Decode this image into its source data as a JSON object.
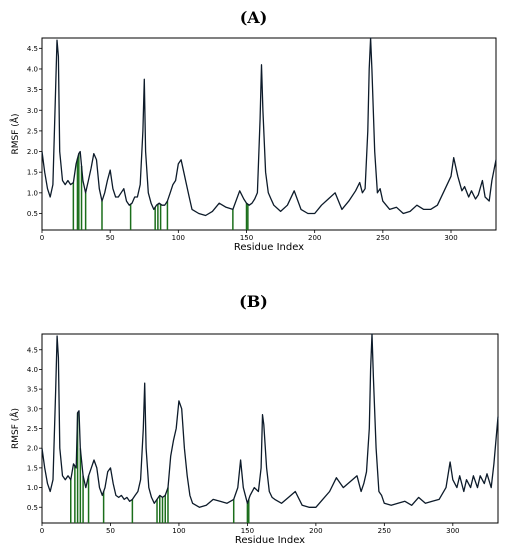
{
  "chart_data": [
    {
      "type": "line",
      "title": "(A)",
      "xlabel": "Residue Index",
      "ylabel": "RMSF (Å)",
      "xlim": [
        0,
        333
      ],
      "ylim": [
        0.1,
        4.75
      ],
      "x_ticks": [
        0,
        50,
        100,
        150,
        200,
        250,
        300
      ],
      "y_ticks": [
        0.5,
        1.0,
        1.5,
        2.0,
        2.5,
        3.0,
        3.5,
        4.0,
        4.5
      ],
      "line_color": "#0d1b2a",
      "marker_color": "#1b6e1b",
      "series": [
        {
          "x": [
            0,
            2,
            4,
            6,
            8,
            10,
            11,
            12,
            13,
            15,
            17,
            19,
            21,
            23,
            25,
            27,
            28,
            30,
            32,
            34,
            36,
            38,
            40,
            42,
            44,
            46,
            48,
            50,
            52,
            54,
            56,
            58,
            60,
            62,
            64,
            66,
            68,
            70,
            72,
            74,
            75,
            76,
            78,
            80,
            82,
            84,
            86,
            88,
            90,
            92,
            94,
            96,
            98,
            100,
            102,
            104,
            106,
            108,
            110,
            115,
            120,
            125,
            130,
            135,
            140,
            145,
            148,
            150,
            152,
            154,
            156,
            158,
            160,
            161,
            162,
            164,
            166,
            168,
            170,
            175,
            180,
            185,
            190,
            195,
            200,
            205,
            210,
            215,
            220,
            225,
            230,
            233,
            235,
            237,
            239,
            240,
            241,
            242,
            244,
            246,
            248,
            250,
            255,
            260,
            265,
            270,
            275,
            280,
            285,
            290,
            295,
            300,
            302,
            305,
            308,
            310,
            313,
            315,
            318,
            320,
            323,
            325,
            328,
            330,
            333
          ],
          "y": [
            2.0,
            1.5,
            1.1,
            0.9,
            1.2,
            3.5,
            4.7,
            4.3,
            2.0,
            1.3,
            1.2,
            1.3,
            1.2,
            1.25,
            1.7,
            1.95,
            2.0,
            1.3,
            1.0,
            1.3,
            1.6,
            1.95,
            1.8,
            1.1,
            0.8,
            1.0,
            1.3,
            1.55,
            1.1,
            0.9,
            0.9,
            1.0,
            1.1,
            0.8,
            0.7,
            0.75,
            0.9,
            0.9,
            1.2,
            2.5,
            3.75,
            2.0,
            1.0,
            0.75,
            0.6,
            0.7,
            0.75,
            0.7,
            0.7,
            0.8,
            1.0,
            1.2,
            1.3,
            1.7,
            1.8,
            1.5,
            1.2,
            0.9,
            0.6,
            0.5,
            0.45,
            0.55,
            0.75,
            0.65,
            0.6,
            1.05,
            0.85,
            0.75,
            0.7,
            0.75,
            0.85,
            1.0,
            2.8,
            4.1,
            3.0,
            1.5,
            1.0,
            0.85,
            0.7,
            0.55,
            0.7,
            1.05,
            0.6,
            0.5,
            0.5,
            0.7,
            0.85,
            1.0,
            0.6,
            0.8,
            1.05,
            1.25,
            1.0,
            1.1,
            2.5,
            4.0,
            4.75,
            4.0,
            2.0,
            1.0,
            1.1,
            0.8,
            0.6,
            0.65,
            0.5,
            0.55,
            0.7,
            0.6,
            0.6,
            0.7,
            1.05,
            1.4,
            1.85,
            1.4,
            1.05,
            1.15,
            0.9,
            1.05,
            0.85,
            0.95,
            1.3,
            0.9,
            0.8,
            1.3,
            1.8
          ]
        }
      ],
      "markers_x": [
        23,
        26,
        27,
        29,
        32,
        44,
        65,
        83,
        85,
        87,
        92,
        140,
        150,
        151
      ]
    },
    {
      "type": "line",
      "title": "(B)",
      "xlabel": "Residue Index",
      "ylabel": "RMSF (Å)",
      "xlim": [
        0,
        333
      ],
      "ylim": [
        0.1,
        4.9
      ],
      "x_ticks": [
        0,
        50,
        100,
        150,
        200,
        250,
        300
      ],
      "y_ticks": [
        0.5,
        1.0,
        1.5,
        2.0,
        2.5,
        3.0,
        3.5,
        4.0,
        4.5
      ],
      "line_color": "#0d1b2a",
      "marker_color": "#1b6e1b",
      "series": [
        {
          "x": [
            0,
            2,
            4,
            6,
            8,
            10,
            11,
            12,
            13,
            15,
            17,
            19,
            21,
            23,
            25,
            26,
            27,
            28,
            30,
            32,
            34,
            36,
            38,
            40,
            42,
            44,
            46,
            48,
            50,
            52,
            54,
            56,
            58,
            60,
            62,
            64,
            66,
            68,
            70,
            72,
            74,
            75,
            76,
            78,
            80,
            82,
            84,
            86,
            88,
            90,
            92,
            94,
            96,
            98,
            100,
            102,
            104,
            106,
            108,
            110,
            115,
            120,
            125,
            130,
            135,
            140,
            143,
            145,
            147,
            150,
            152,
            155,
            158,
            160,
            161,
            162,
            164,
            166,
            168,
            170,
            175,
            180,
            185,
            190,
            195,
            200,
            205,
            210,
            215,
            220,
            225,
            230,
            233,
            235,
            237,
            239,
            240,
            241,
            242,
            244,
            246,
            248,
            250,
            255,
            260,
            265,
            270,
            275,
            280,
            285,
            290,
            295,
            298,
            300,
            303,
            305,
            308,
            310,
            313,
            315,
            318,
            320,
            323,
            325,
            328,
            330,
            333
          ],
          "y": [
            2.0,
            1.5,
            1.1,
            0.9,
            1.2,
            3.5,
            4.85,
            4.3,
            2.0,
            1.3,
            1.2,
            1.3,
            1.2,
            1.6,
            1.5,
            2.9,
            2.95,
            2.0,
            1.3,
            1.0,
            1.3,
            1.5,
            1.7,
            1.5,
            1.0,
            0.8,
            1.0,
            1.4,
            1.5,
            1.1,
            0.8,
            0.75,
            0.8,
            0.7,
            0.75,
            0.65,
            0.7,
            0.8,
            0.9,
            1.2,
            2.5,
            3.65,
            2.0,
            1.0,
            0.75,
            0.6,
            0.7,
            0.8,
            0.75,
            0.8,
            1.0,
            1.8,
            2.2,
            2.5,
            3.2,
            3.0,
            2.0,
            1.3,
            0.8,
            0.6,
            0.5,
            0.55,
            0.7,
            0.65,
            0.6,
            0.7,
            1.0,
            1.7,
            1.0,
            0.6,
            0.8,
            1.0,
            0.9,
            1.5,
            2.85,
            2.6,
            1.5,
            0.9,
            0.75,
            0.7,
            0.6,
            0.75,
            0.9,
            0.55,
            0.5,
            0.5,
            0.7,
            0.9,
            1.25,
            1.0,
            1.15,
            1.3,
            0.9,
            1.1,
            1.4,
            2.5,
            4.0,
            4.9,
            3.8,
            2.0,
            0.9,
            0.8,
            0.6,
            0.55,
            0.6,
            0.65,
            0.55,
            0.75,
            0.6,
            0.65,
            0.7,
            1.0,
            1.65,
            1.2,
            1.0,
            1.3,
            0.9,
            1.2,
            1.0,
            1.3,
            1.0,
            1.3,
            1.1,
            1.35,
            1.0,
            1.6,
            2.8
          ]
        }
      ],
      "markers_x": [
        21,
        24,
        26,
        28,
        30,
        34,
        45,
        66,
        84,
        86,
        88,
        90,
        92,
        140,
        150,
        151
      ]
    }
  ]
}
